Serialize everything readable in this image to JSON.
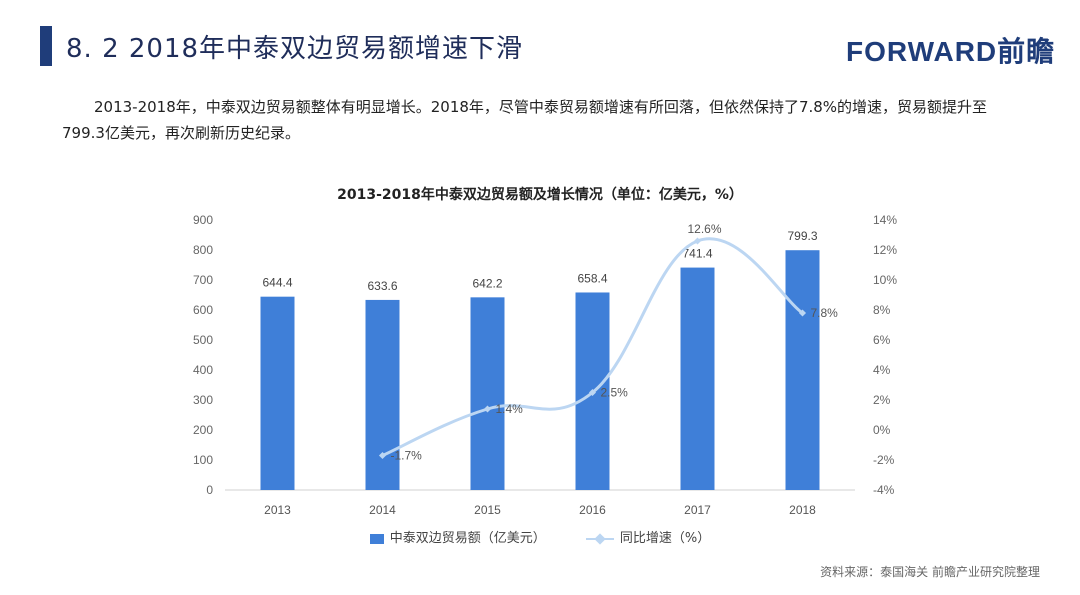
{
  "header": {
    "title": "8. 2  2018年中泰双边贸易额增速下滑",
    "logo": "FORWARD前瞻"
  },
  "body": {
    "paragraph": "2013-2018年，中泰双边贸易额整体有明显增长。2018年，尽管中泰贸易额增速有所回落，但依然保持了7.8%的增速，贸易额提升至799.3亿美元，再次刷新历史纪录。"
  },
  "legend": {
    "bar_label": "中泰双边贸易额（亿美元）",
    "line_label": "同比增速（%）"
  },
  "footer": {
    "source": "资料来源：泰国海关  前瞻产业研究院整理"
  },
  "colors": {
    "bar": "#3f7fd8",
    "line": "#bcd6f2",
    "title_bar": "#1f3d7a"
  },
  "chart_data": {
    "type": "bar",
    "title": "2013-2018年中泰双边贸易额及增长情况（单位：亿美元，%）",
    "categories": [
      "2013",
      "2014",
      "2015",
      "2016",
      "2017",
      "2018"
    ],
    "series": [
      {
        "name": "中泰双边贸易额（亿美元）",
        "type": "bar",
        "axis": "left",
        "values": [
          644.4,
          633.6,
          642.2,
          658.4,
          741.4,
          799.3
        ],
        "labels": [
          "644.4",
          "633.6",
          "642.2",
          "658.4",
          "741.4",
          "799.3"
        ]
      },
      {
        "name": "同比增速（%）",
        "type": "line",
        "axis": "right",
        "values": [
          null,
          -1.7,
          1.4,
          2.5,
          12.6,
          7.8
        ],
        "labels": [
          "",
          "-1.7%",
          "1.4%",
          "2.5%",
          "12.6%",
          "7.8%"
        ]
      }
    ],
    "y_left": {
      "min": 0,
      "max": 900,
      "step": 100,
      "ticks": [
        "0",
        "100",
        "200",
        "300",
        "400",
        "500",
        "600",
        "700",
        "800",
        "900"
      ]
    },
    "y_right": {
      "min": -4,
      "max": 14,
      "step": 2,
      "ticks": [
        "-4%",
        "-2%",
        "0%",
        "2%",
        "4%",
        "6%",
        "8%",
        "10%",
        "12%",
        "14%"
      ]
    },
    "legend_position": "bottom",
    "grid": false
  }
}
